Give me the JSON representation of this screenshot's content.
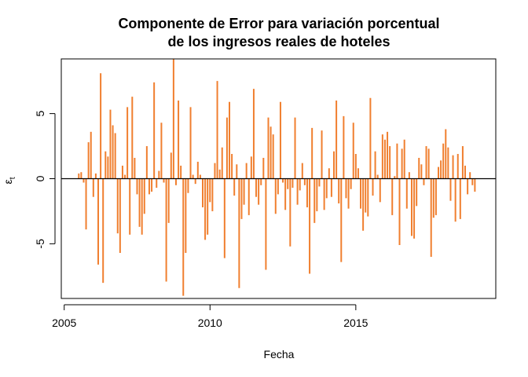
{
  "chart_data": {
    "type": "bar",
    "title_line1": "Componente de Error para variación porcentual",
    "title_line2": "de los ingresos reales de hoteles",
    "xlabel": "Fecha",
    "ylabel": "εt",
    "xlim": [
      2005.5,
      2019.1
    ],
    "ylim": [
      -9.2,
      9.2
    ],
    "x_ticks": [
      2005,
      2010,
      2015
    ],
    "x_tick_labels": [
      "2005",
      "2010",
      "2015"
    ],
    "y_ticks": [
      -5,
      0,
      5
    ],
    "y_tick_labels": [
      "-5",
      "0",
      "5"
    ],
    "bar_color": "#f07f2f",
    "zero_line": true,
    "grid": false,
    "x_start": 2005.5,
    "x_step": 0.08333,
    "series": [
      {
        "values": [
          0.4,
          0.5,
          -0.3,
          -3.9,
          2.8,
          3.6,
          -1.4,
          0.4,
          -6.6,
          8.1,
          -8.0,
          2.1,
          1.7,
          5.3,
          4.1,
          3.5,
          -4.2,
          -5.7,
          1.0,
          0.3,
          5.5,
          -4.3,
          6.3,
          1.6,
          -1.2,
          -3.7,
          -4.3,
          -2.7,
          2.5,
          -1.2,
          -1.0,
          7.4,
          -0.7,
          0.6,
          4.3,
          -0.3,
          -7.9,
          -3.4,
          2.0,
          9.2,
          -0.5,
          6.0,
          1.0,
          -9.0,
          -5.7,
          -1.1,
          5.5,
          0.3,
          -0.4,
          1.3,
          0.3,
          -2.2,
          -4.7,
          -4.3,
          -1.8,
          -2.5,
          1.2,
          7.5,
          0.7,
          2.4,
          -6.1,
          4.7,
          5.9,
          1.9,
          -1.3,
          1.1,
          -8.4,
          -3.1,
          -2.0,
          1.2,
          -2.8,
          1.7,
          6.9,
          -1.4,
          -2.0,
          -0.5,
          1.6,
          -7.0,
          4.7,
          4.0,
          3.4,
          -2.7,
          -1.2,
          5.9,
          -0.3,
          -2.4,
          -0.8,
          -5.2,
          -0.7,
          4.7,
          -2.0,
          -0.9,
          1.2,
          -0.5,
          -2.2,
          -7.3,
          3.9,
          -3.4,
          -2.5,
          -0.6,
          3.7,
          -2.4,
          -1.5,
          0.8,
          -1.4,
          2.1,
          6.0,
          -1.9,
          -6.4,
          4.8,
          -1.5,
          -2.3,
          -0.8,
          4.3,
          1.9,
          0.8,
          -2.3,
          -4.0,
          -2.6,
          -2.9,
          6.2,
          -1.3,
          2.1,
          0.3,
          -1.8,
          3.4,
          3.0,
          3.6,
          2.5,
          -2.8,
          0.2,
          2.7,
          -5.1,
          2.3,
          3.0,
          -2.3,
          0.5,
          -4.4,
          -4.6,
          -2.1,
          1.6,
          1.1,
          -0.5,
          2.5,
          2.3,
          -6.0,
          -3.0,
          -2.8,
          0.9,
          1.4,
          2.7,
          3.8,
          2.4,
          -1.7,
          1.8,
          -3.3,
          1.9,
          -3.1,
          2.5,
          1.0,
          -1.2,
          0.5,
          -0.5,
          -1.0
        ]
      }
    ]
  }
}
